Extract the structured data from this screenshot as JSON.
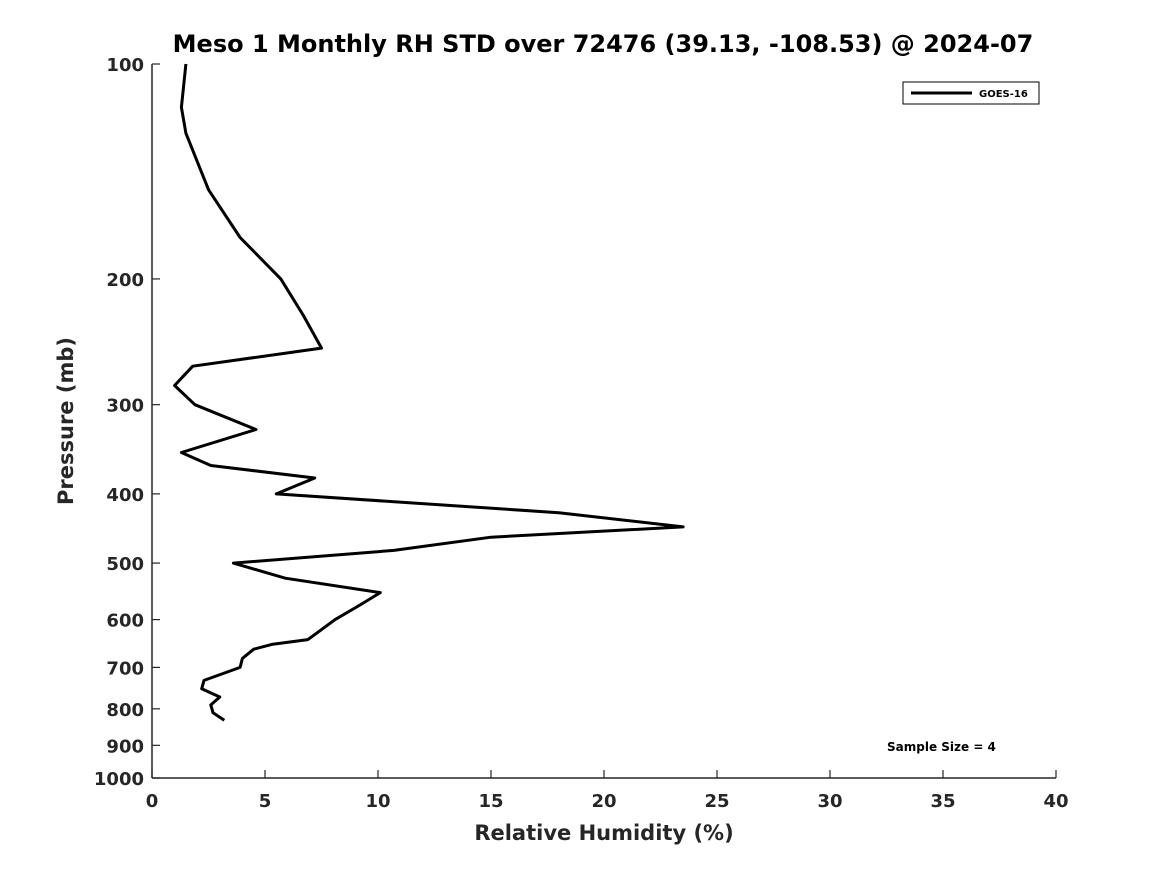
{
  "chart_data": {
    "type": "line",
    "title": "Meso 1 Monthly RH STD over 72476 (39.13, -108.53) @ 2024-07",
    "xlabel": "Relative Humidity (%)",
    "ylabel": "Pressure (mb)",
    "xlim": [
      0,
      40
    ],
    "ylim": [
      100,
      1000
    ],
    "y_scale": "log",
    "y_reversed": true,
    "grid": false,
    "x_ticks": [
      0,
      5,
      10,
      15,
      20,
      25,
      30,
      35,
      40
    ],
    "y_ticks": [
      100,
      200,
      300,
      400,
      500,
      600,
      700,
      800,
      900,
      1000
    ],
    "legend": {
      "position": "top-right",
      "entries": [
        "GOES-16"
      ]
    },
    "annotations": [
      "Sample Size = 4"
    ],
    "series": [
      {
        "name": "GOES-16",
        "color": "#000000",
        "x": [
          1.5,
          1.3,
          1.5,
          2.5,
          3.9,
          5.7,
          6.7,
          7.5,
          1.8,
          1.0,
          1.9,
          4.6,
          1.3,
          2.6,
          7.2,
          5.5,
          18.0,
          23.5,
          15.0,
          10.7,
          3.6,
          5.9,
          10.1,
          9.1,
          8.1,
          6.9,
          5.3,
          4.5,
          4.0,
          3.9,
          2.3,
          2.2,
          3.0,
          2.6,
          2.7,
          3.2
        ],
        "y": [
          100,
          115,
          125,
          150,
          175,
          200,
          225,
          250,
          265,
          282,
          300,
          325,
          350,
          365,
          380,
          400,
          425,
          445,
          460,
          480,
          500,
          525,
          550,
          575,
          600,
          640,
          650,
          660,
          680,
          700,
          730,
          750,
          770,
          790,
          810,
          830
        ]
      }
    ]
  }
}
